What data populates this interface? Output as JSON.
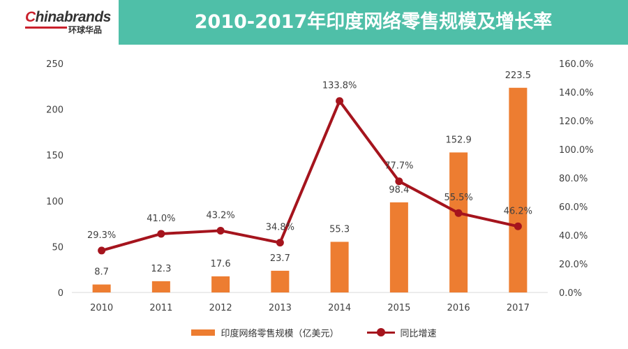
{
  "header": {
    "logo_prefix": "C",
    "logo_main": "hinabrands",
    "logo_sub": "环球华品",
    "title": "2010-2017年印度网络零售规模及增长率"
  },
  "chart_data": {
    "type": "bar",
    "categories": [
      "2010",
      "2011",
      "2012",
      "2013",
      "2014",
      "2015",
      "2016",
      "2017"
    ],
    "series": [
      {
        "name": "印度网络零售规模（亿美元）",
        "type": "bar",
        "axis": "left",
        "values": [
          8.7,
          12.3,
          17.6,
          23.7,
          55.3,
          98.4,
          152.9,
          223.5
        ],
        "labels": [
          "8.7",
          "12.3",
          "17.6",
          "23.7",
          "55.3",
          "98.4",
          "152.9",
          "223.5"
        ],
        "color": "#ed7d31"
      },
      {
        "name": "同比增速",
        "type": "line",
        "axis": "right",
        "values": [
          29.3,
          41.0,
          43.2,
          34.8,
          133.8,
          77.7,
          55.5,
          46.2
        ],
        "labels": [
          "29.3%",
          "41.0%",
          "43.2%",
          "34.8%",
          "133.8%",
          "77.7%",
          "55.5%",
          "46.2%"
        ],
        "color": "#a5141d"
      }
    ],
    "y_left": {
      "min": 0,
      "max": 250,
      "ticks": [
        "0",
        "50",
        "100",
        "150",
        "200",
        "250"
      ]
    },
    "y_right": {
      "min": 0,
      "max": 160,
      "ticks": [
        "0.0%",
        "20.0%",
        "40.0%",
        "60.0%",
        "80.0%",
        "100.0%",
        "120.0%",
        "140.0%",
        "160.0%"
      ]
    },
    "grid": false,
    "legend": "bottom"
  }
}
